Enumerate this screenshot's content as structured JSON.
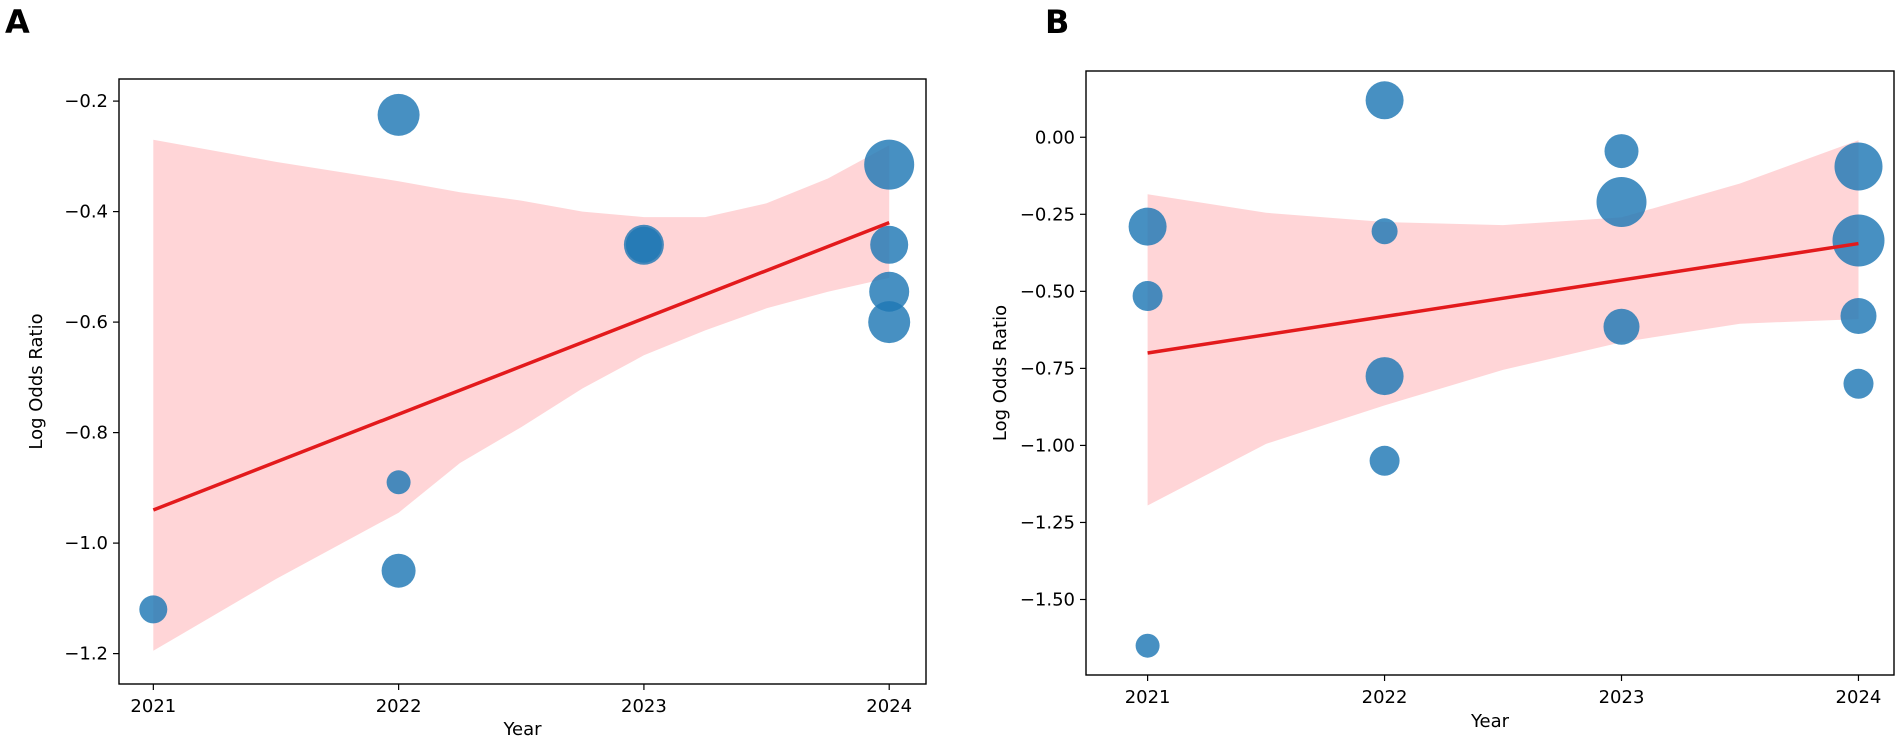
{
  "colors": {
    "point": "#1f77b4",
    "trend_line": "#e31a1c",
    "ci_band": "#ffb3b6",
    "axis": "#000000"
  },
  "chart_data": [
    {
      "type": "scatter",
      "panel_label": "A",
      "title": "",
      "xlabel": "Year",
      "ylabel": "Log Odds Ratio",
      "xlim": [
        2020.86,
        2024.15
      ],
      "ylim": [
        -1.255,
        -0.16
      ],
      "xticks": [
        2021,
        2022,
        2023,
        2024
      ],
      "xtick_labels": [
        "2021",
        "2022",
        "2023",
        "2024"
      ],
      "yticks": [
        -1.2,
        -1.0,
        -0.8,
        -0.6,
        -0.4,
        -0.2
      ],
      "ytick_labels": [
        "−1.2",
        "−1.0",
        "−0.8",
        "−0.6",
        "−0.4",
        "−0.2"
      ],
      "grid": false,
      "points": [
        {
          "x": 2021,
          "y": -1.12,
          "size": 14
        },
        {
          "x": 2022,
          "y": -0.225,
          "size": 21
        },
        {
          "x": 2022,
          "y": -0.89,
          "size": 12
        },
        {
          "x": 2022,
          "y": -1.05,
          "size": 17
        },
        {
          "x": 2023,
          "y": -0.46,
          "size": 20
        },
        {
          "x": 2023,
          "y": -0.46,
          "size": 18
        },
        {
          "x": 2024,
          "y": -0.315,
          "size": 25
        },
        {
          "x": 2024,
          "y": -0.46,
          "size": 19
        },
        {
          "x": 2024,
          "y": -0.545,
          "size": 20
        },
        {
          "x": 2024,
          "y": -0.6,
          "size": 21
        }
      ],
      "regression": {
        "x": [
          2021,
          2024
        ],
        "y": [
          -0.94,
          -0.42
        ]
      },
      "ci_band": {
        "x": [
          2021,
          2021.5,
          2022,
          2022.25,
          2022.5,
          2022.75,
          2023,
          2023.25,
          2023.5,
          2023.75,
          2024
        ],
        "upper": [
          -0.27,
          -0.31,
          -0.345,
          -0.365,
          -0.38,
          -0.4,
          -0.41,
          -0.41,
          -0.385,
          -0.34,
          -0.28
        ],
        "lower": [
          -1.195,
          -1.065,
          -0.945,
          -0.855,
          -0.79,
          -0.72,
          -0.66,
          -0.615,
          -0.575,
          -0.545,
          -0.52
        ]
      }
    },
    {
      "type": "scatter",
      "panel_label": "B",
      "title": "",
      "xlabel": "Year",
      "ylabel": "Log Odds Ratio",
      "xlim": [
        2020.74,
        2024.15
      ],
      "ylim": [
        -1.745,
        0.215
      ],
      "xticks": [
        2021,
        2022,
        2023,
        2024
      ],
      "xtick_labels": [
        "2021",
        "2022",
        "2023",
        "2024"
      ],
      "yticks": [
        -1.5,
        -1.25,
        -1.0,
        -0.75,
        -0.5,
        -0.25,
        0.0
      ],
      "ytick_labels": [
        "−1.50",
        "−1.25",
        "−1.00",
        "−0.75",
        "−0.50",
        "−0.25",
        "0.00"
      ],
      "grid": false,
      "points": [
        {
          "x": 2021,
          "y": -0.29,
          "size": 19
        },
        {
          "x": 2021,
          "y": -0.515,
          "size": 15
        },
        {
          "x": 2021,
          "y": -1.65,
          "size": 12
        },
        {
          "x": 2022,
          "y": 0.12,
          "size": 19
        },
        {
          "x": 2022,
          "y": -0.305,
          "size": 13
        },
        {
          "x": 2022,
          "y": -0.775,
          "size": 19
        },
        {
          "x": 2022,
          "y": -1.05,
          "size": 15
        },
        {
          "x": 2023,
          "y": -0.045,
          "size": 17
        },
        {
          "x": 2023,
          "y": -0.21,
          "size": 25
        },
        {
          "x": 2023,
          "y": -0.615,
          "size": 18
        },
        {
          "x": 2024,
          "y": -0.095,
          "size": 24
        },
        {
          "x": 2024,
          "y": -0.335,
          "size": 26
        },
        {
          "x": 2024,
          "y": -0.58,
          "size": 18
        },
        {
          "x": 2024,
          "y": -0.8,
          "size": 15
        }
      ],
      "regression": {
        "x": [
          2021,
          2024
        ],
        "y": [
          -0.7,
          -0.345
        ]
      },
      "ci_band": {
        "x": [
          2021,
          2021.5,
          2022,
          2022.5,
          2023,
          2023.5,
          2024
        ],
        "upper": [
          -0.185,
          -0.245,
          -0.275,
          -0.285,
          -0.26,
          -0.15,
          -0.01
        ],
        "lower": [
          -1.195,
          -0.995,
          -0.87,
          -0.755,
          -0.665,
          -0.605,
          -0.59
        ]
      }
    }
  ]
}
